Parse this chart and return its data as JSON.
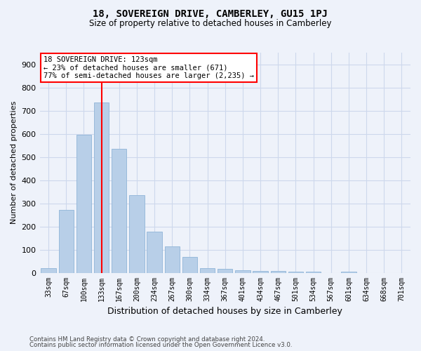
{
  "title": "18, SOVEREIGN DRIVE, CAMBERLEY, GU15 1PJ",
  "subtitle": "Size of property relative to detached houses in Camberley",
  "xlabel": "Distribution of detached houses by size in Camberley",
  "ylabel": "Number of detached properties",
  "footer1": "Contains HM Land Registry data © Crown copyright and database right 2024.",
  "footer2": "Contains public sector information licensed under the Open Government Licence v3.0.",
  "categories": [
    "33sqm",
    "67sqm",
    "100sqm",
    "133sqm",
    "167sqm",
    "200sqm",
    "234sqm",
    "267sqm",
    "300sqm",
    "334sqm",
    "367sqm",
    "401sqm",
    "434sqm",
    "467sqm",
    "501sqm",
    "534sqm",
    "567sqm",
    "601sqm",
    "634sqm",
    "668sqm",
    "701sqm"
  ],
  "values": [
    20,
    270,
    595,
    735,
    535,
    335,
    178,
    115,
    67,
    20,
    18,
    10,
    8,
    7,
    6,
    5,
    0,
    5,
    0,
    0,
    0
  ],
  "bar_color": "#b8cfe8",
  "bar_edge_color": "#90b4d8",
  "grid_color": "#cdd8ec",
  "background_color": "#eef2fa",
  "vline_x": 3,
  "vline_color": "red",
  "annotation_title": "18 SOVEREIGN DRIVE: 123sqm",
  "annotation_line2": "← 23% of detached houses are smaller (671)",
  "annotation_line3": "77% of semi-detached houses are larger (2,235) →",
  "annotation_box_color": "white",
  "annotation_box_edge": "red",
  "ylim": [
    0,
    950
  ],
  "yticks": [
    0,
    100,
    200,
    300,
    400,
    500,
    600,
    700,
    800,
    900
  ]
}
